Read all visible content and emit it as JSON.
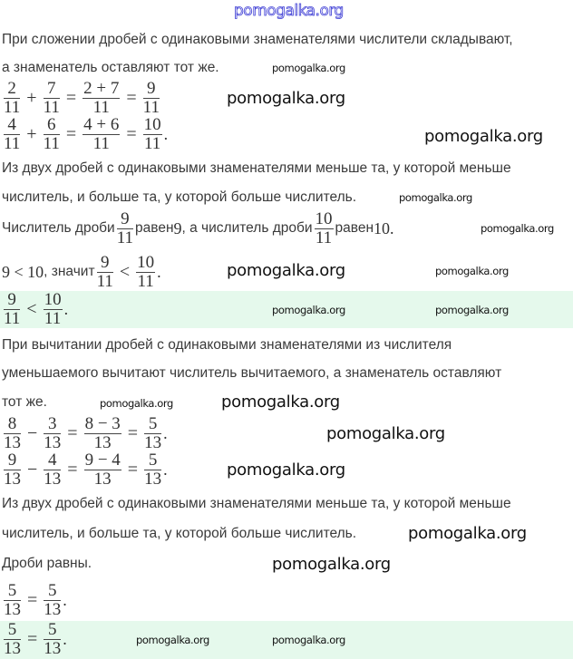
{
  "header": {
    "site": "pomogalka.org"
  },
  "watermark": "pomogalka.org",
  "colors": {
    "highlight": "#e5f9ec",
    "header_link": "#3b3bd4"
  },
  "rows": [
    {
      "id": "text-addition-rule-1",
      "top": 33,
      "segs": [
        {
          "t": "При сложении дробей с одинаковыми знаменателями числители складывают,"
        }
      ]
    },
    {
      "id": "text-addition-rule-2",
      "top": 64,
      "segs": [
        {
          "t": "а знаменатель оставляют тот же."
        }
      ]
    },
    {
      "id": "formula-add-1",
      "top": 88,
      "segs": [
        {
          "n": "2",
          "d": "11"
        },
        {
          "o": "+"
        },
        {
          "n": "7",
          "d": "11"
        },
        {
          "o": "="
        },
        {
          "n": "2 + 7",
          "d": "11"
        },
        {
          "o": "="
        },
        {
          "n": "9",
          "d": "11"
        }
      ]
    },
    {
      "id": "formula-add-2",
      "top": 128,
      "segs": [
        {
          "n": "4",
          "d": "11"
        },
        {
          "o": "+"
        },
        {
          "n": "6",
          "d": "11"
        },
        {
          "o": "="
        },
        {
          "n": "4 + 6",
          "d": "11"
        },
        {
          "o": "="
        },
        {
          "n": "10",
          "d": "11"
        },
        {
          "m": "."
        }
      ]
    },
    {
      "id": "text-compare-rule-1",
      "top": 175,
      "segs": [
        {
          "t": "Из двух дробей с одинаковыми знаменателями меньше та, у которой меньше"
        }
      ]
    },
    {
      "id": "text-compare-rule-2",
      "top": 207,
      "segs": [
        {
          "t": "числитель, и больше та, у которой больше числитель."
        }
      ]
    },
    {
      "id": "text-numerators",
      "top": 232,
      "segs": [
        {
          "t": "Числитель дроби "
        },
        {
          "n": "9",
          "d": "11"
        },
        {
          "t": " равен "
        },
        {
          "m": "9"
        },
        {
          "t": ", а числитель дроби "
        },
        {
          "n": "10",
          "d": "11"
        },
        {
          "t": " равен "
        },
        {
          "m": "10."
        }
      ]
    },
    {
      "id": "text-conclusion",
      "top": 280,
      "segs": [
        {
          "m": "9 < 10"
        },
        {
          "t": ", значит "
        },
        {
          "n": "9",
          "d": "11"
        },
        {
          "o": "<"
        },
        {
          "n": "10",
          "d": "11"
        },
        {
          "m": "."
        }
      ]
    },
    {
      "id": "answer-1",
      "top": 321,
      "band": true,
      "segs": [
        {
          "n": "9",
          "d": "11"
        },
        {
          "o": "<"
        },
        {
          "n": "10",
          "d": "11"
        },
        {
          "m": "."
        }
      ]
    },
    {
      "id": "text-subtraction-rule-1",
      "top": 370,
      "segs": [
        {
          "t": "При вычитании дробей с одинаковыми знаменателями из числителя"
        }
      ]
    },
    {
      "id": "text-subtraction-rule-2",
      "top": 401,
      "segs": [
        {
          "t": "уменьшаемого вычитают числитель вычитаемого, а знаменатель оставляют"
        }
      ]
    },
    {
      "id": "text-subtraction-rule-3",
      "top": 433,
      "segs": [
        {
          "t": "тот же."
        }
      ]
    },
    {
      "id": "formula-sub-1",
      "top": 458,
      "segs": [
        {
          "n": "8",
          "d": "13"
        },
        {
          "o": "−"
        },
        {
          "n": "3",
          "d": "13"
        },
        {
          "o": "="
        },
        {
          "n": "8 − 3",
          "d": "13"
        },
        {
          "o": "="
        },
        {
          "n": "5",
          "d": "13"
        },
        {
          "m": "."
        }
      ]
    },
    {
      "id": "formula-sub-2",
      "top": 498,
      "segs": [
        {
          "n": "9",
          "d": "13"
        },
        {
          "o": "−"
        },
        {
          "n": "4",
          "d": "13"
        },
        {
          "o": "="
        },
        {
          "n": "9 − 4",
          "d": "13"
        },
        {
          "o": "="
        },
        {
          "n": "5",
          "d": "13"
        },
        {
          "m": "."
        }
      ]
    },
    {
      "id": "text-compare-rule-3",
      "top": 545,
      "segs": [
        {
          "t": "Из двух дробей с одинаковыми знаменателями меньше та, у которой меньше"
        }
      ]
    },
    {
      "id": "text-compare-rule-4",
      "top": 578,
      "segs": [
        {
          "t": "числитель, и больше та, у которой больше числитель."
        }
      ]
    },
    {
      "id": "text-equal",
      "top": 611,
      "segs": [
        {
          "t": "Дроби равны."
        }
      ]
    },
    {
      "id": "formula-equal",
      "top": 642,
      "segs": [
        {
          "n": "5",
          "d": "13"
        },
        {
          "o": "="
        },
        {
          "n": "5",
          "d": "13"
        },
        {
          "m": "."
        }
      ]
    },
    {
      "id": "answer-2",
      "top": 685,
      "band": true,
      "segs": [
        {
          "n": "5",
          "d": "13"
        },
        {
          "o": "="
        },
        {
          "n": "5",
          "d": "13"
        },
        {
          "m": "."
        }
      ]
    }
  ]
}
